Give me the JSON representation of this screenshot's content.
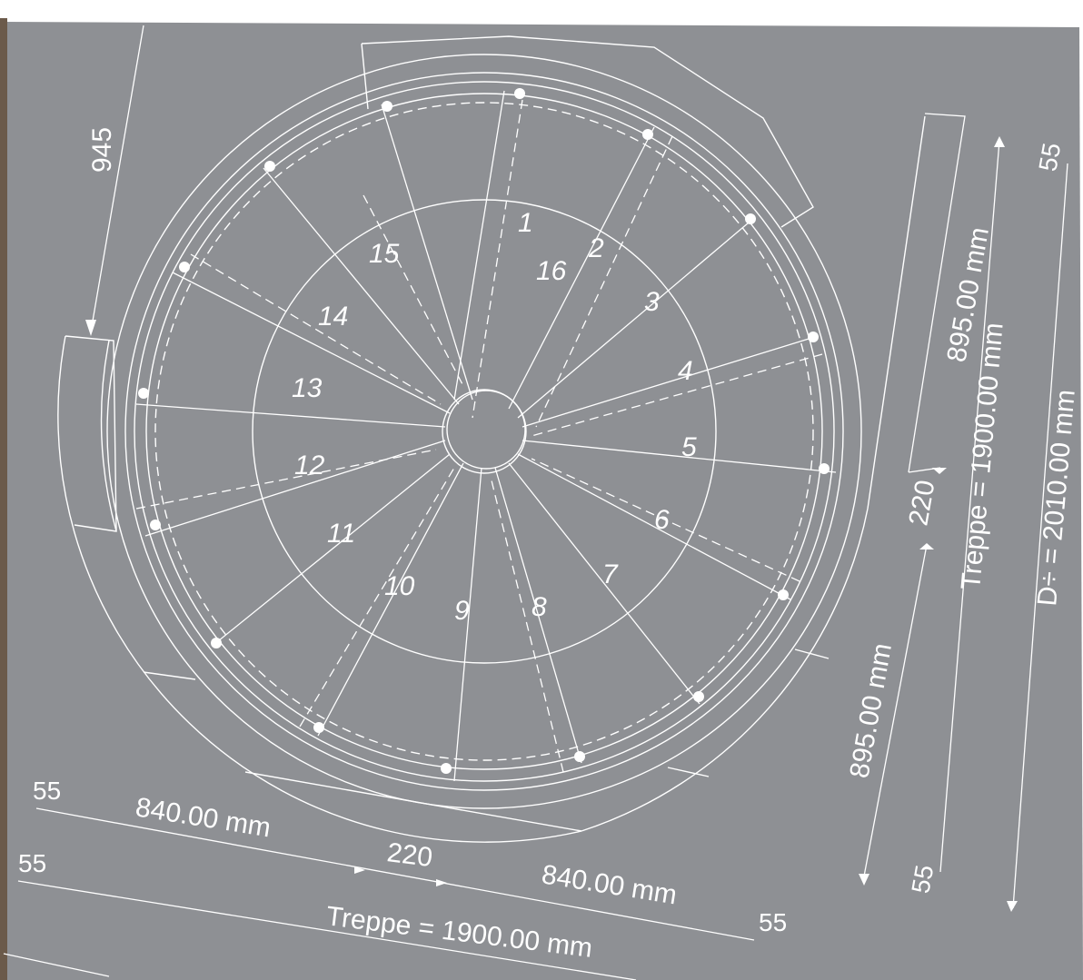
{
  "colors": {
    "sheet": "#8e9094",
    "line": "#ffffff",
    "edge_left": "#6b5a4a",
    "edge_top": "#ffffff"
  },
  "steps": [
    "1",
    "2",
    "3",
    "4",
    "5",
    "6",
    "7",
    "8",
    "9",
    "10",
    "11",
    "12",
    "13",
    "14",
    "15",
    "16"
  ],
  "dims": {
    "d945": "945",
    "d895_upper": "895.00 mm",
    "d895_lower": "895.00 mm",
    "d220_right": "220",
    "d220_bottom": "220",
    "d840_left": "840.00 mm",
    "d840_right": "840.00 mm",
    "treppe_right": "Treppe = 1900.00 mm",
    "treppe_bottom": "Treppe = 1900.00 mm",
    "diameter": "D÷ = 2010.00 mm",
    "s55_top_right": "55",
    "s55_bottom_right": "55",
    "s55_left_top": "55",
    "s55_left_bottom": "55",
    "s55_bottom_end": "55"
  }
}
